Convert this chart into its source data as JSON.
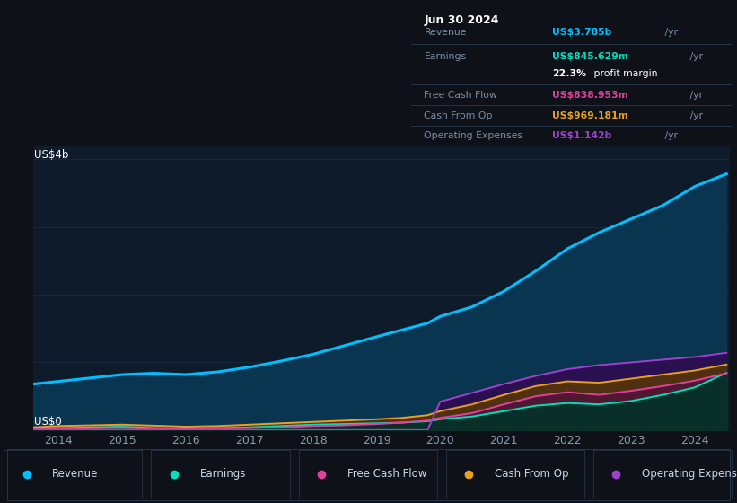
{
  "bg_color": "#0e1117",
  "plot_bg_color": "#0d1b2a",
  "legend_bg_color": "#0e1117",
  "years": [
    2013.6,
    2014.0,
    2014.5,
    2015.0,
    2015.5,
    2016.0,
    2016.5,
    2017.0,
    2017.5,
    2018.0,
    2018.5,
    2019.0,
    2019.4,
    2019.8,
    2020.0,
    2020.5,
    2021.0,
    2021.5,
    2022.0,
    2022.5,
    2023.0,
    2023.5,
    2024.0,
    2024.5
  ],
  "revenue": [
    0.68,
    0.72,
    0.77,
    0.82,
    0.84,
    0.82,
    0.86,
    0.93,
    1.02,
    1.12,
    1.25,
    1.38,
    1.48,
    1.58,
    1.68,
    1.82,
    2.05,
    2.35,
    2.68,
    2.92,
    3.12,
    3.32,
    3.6,
    3.785
  ],
  "earnings": [
    0.02,
    0.03,
    0.04,
    0.05,
    0.03,
    0.02,
    0.03,
    0.04,
    0.06,
    0.08,
    0.09,
    0.1,
    0.11,
    0.13,
    0.16,
    0.2,
    0.28,
    0.36,
    0.4,
    0.38,
    0.43,
    0.52,
    0.63,
    0.846
  ],
  "free_cash_flow": [
    0.01,
    0.02,
    0.025,
    0.03,
    0.02,
    0.01,
    0.02,
    0.03,
    0.04,
    0.06,
    0.07,
    0.09,
    0.11,
    0.14,
    0.18,
    0.25,
    0.38,
    0.5,
    0.56,
    0.52,
    0.58,
    0.65,
    0.73,
    0.839
  ],
  "cash_from_op": [
    0.04,
    0.06,
    0.07,
    0.08,
    0.065,
    0.05,
    0.06,
    0.08,
    0.1,
    0.12,
    0.14,
    0.16,
    0.18,
    0.22,
    0.28,
    0.38,
    0.52,
    0.65,
    0.72,
    0.7,
    0.76,
    0.82,
    0.88,
    0.969
  ],
  "operating_expenses": [
    0.0,
    0.0,
    0.0,
    0.0,
    0.0,
    0.0,
    0.0,
    0.0,
    0.0,
    0.0,
    0.0,
    0.0,
    0.0,
    0.0,
    0.42,
    0.55,
    0.68,
    0.8,
    0.9,
    0.96,
    1.0,
    1.04,
    1.08,
    1.142
  ],
  "revenue_color": "#00bfff",
  "earnings_color": "#00e0c0",
  "fcf_color": "#e040a0",
  "cashop_color": "#e8a020",
  "opex_color": "#a040d0",
  "revenue_fill": "#0a3550",
  "earnings_fill": "#083028",
  "fcf_fill": "#501830",
  "cashop_fill": "#503010",
  "opex_fill": "#2a1050",
  "ylim_max": 4.2,
  "y_label_top": "US$4b",
  "y_label_bot": "US$0",
  "xticks": [
    2014,
    2015,
    2016,
    2017,
    2018,
    2019,
    2020,
    2021,
    2022,
    2023,
    2024
  ],
  "grid_color": "#182838",
  "info_date": "Jun 30 2024",
  "info_rows": [
    {
      "label": "Revenue",
      "value": "US$3.785b",
      "unit": "/yr",
      "color": "#00bfff",
      "margin": null,
      "sep_above": true
    },
    {
      "label": "Earnings",
      "value": "US$845.629m",
      "unit": "/yr",
      "color": "#00e0c0",
      "margin": "22.3% profit margin",
      "sep_above": true
    },
    {
      "label": "Free Cash Flow",
      "value": "US$838.953m",
      "unit": "/yr",
      "color": "#e040a0",
      "margin": null,
      "sep_above": true
    },
    {
      "label": "Cash From Op",
      "value": "US$969.181m",
      "unit": "/yr",
      "color": "#e8a020",
      "margin": null,
      "sep_above": true
    },
    {
      "label": "Operating Expenses",
      "value": "US$1.142b",
      "unit": "/yr",
      "color": "#a040d0",
      "margin": null,
      "sep_above": true
    }
  ],
  "legend_items": [
    {
      "label": "Revenue",
      "color": "#00bfff"
    },
    {
      "label": "Earnings",
      "color": "#00e0c0"
    },
    {
      "label": "Free Cash Flow",
      "color": "#e040a0"
    },
    {
      "label": "Cash From Op",
      "color": "#e8a020"
    },
    {
      "label": "Operating Expenses",
      "color": "#a040d0"
    }
  ]
}
